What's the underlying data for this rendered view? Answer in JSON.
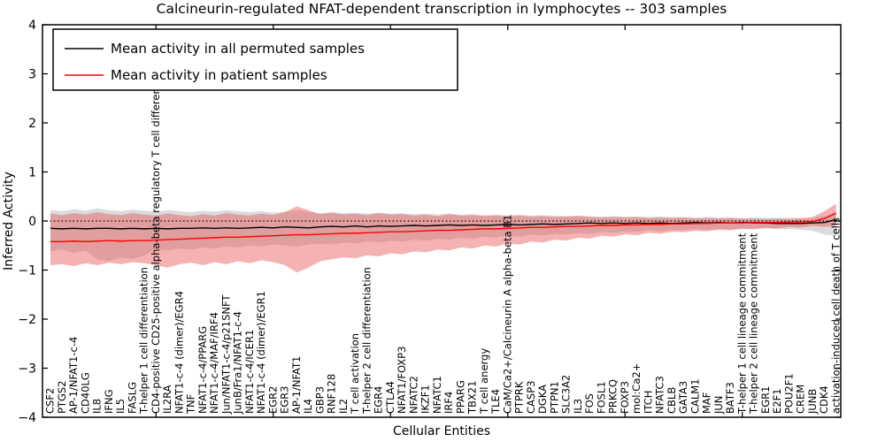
{
  "chart_data": {
    "type": "line",
    "title": "Calcineurin-regulated NFAT-dependent transcription in lymphocytes -- 303 samples",
    "xlabel": "Cellular Entities",
    "ylabel": "Inferred Activity",
    "ylim": [
      -4,
      4
    ],
    "yticks": [
      4,
      3,
      2,
      1,
      0,
      -1,
      -2,
      -3,
      -4
    ],
    "grid": false,
    "legend_position": "upper left",
    "reference_line": {
      "y": 0,
      "style": "dotted",
      "color": "#000000"
    },
    "axis_color": "#000000",
    "top_tick_indices": [
      9,
      19,
      29,
      39,
      49,
      59
    ],
    "categories": [
      "CSF2",
      "PTGS2",
      "AP-1/NFAT1-c-4",
      "CD40LG",
      "IL8",
      "IFNG",
      "IL5",
      "FASLG",
      "T-helper 1 cell differentiation",
      "CD4-positive CD25-positive alpha-beta regulatory T cell differentiation",
      "IL2RA",
      "NFAT1-c-4 (dimer)/EGR4",
      "TNF",
      "NFAT1-c-4/PPARG",
      "NFAT1-c-4/MAF/IRF4",
      "Jun/NFAT1-c-4/p21SNFT",
      "JunB/Fra1/NFAT1-c-4",
      "NFAT1-c-4/ICER1",
      "NFAT1-c-4 (dimer)/EGR1",
      "EGR2",
      "EGR3",
      "AP-1/NFAT1",
      "IL4",
      "GBP3",
      "RNF128",
      "IL2",
      "T cell activation",
      "T-helper 2 cell differentiation",
      "EGR4",
      "CTLA4",
      "NFAT1/FOXP3",
      "NFATC2",
      "IKZF1",
      "NFATC1",
      "IRF4",
      "PPARG",
      "TBX21",
      "T cell anergy",
      "TLE4",
      "CaM/Ca2+/Calcineurin A alpha-beta B1",
      "PTPRK",
      "CASP3",
      "DGKA",
      "PTPN1",
      "SLC3A2",
      "IL3",
      "FOS",
      "FOSL1",
      "PRKCQ",
      "FOXP3",
      "mol:Ca2+",
      "ITCH",
      "NFATC3",
      "CBLB",
      "GATA3",
      "CALM1",
      "MAF",
      "JUN",
      "BATF3",
      "T-helper 1 cell lineage commitment",
      "T-helper 2 cell lineage commitment",
      "EGR1",
      "E2F1",
      "POU2F1",
      "CREM",
      "JUNB",
      "CDK4",
      "activation-induced cell death of T cells"
    ],
    "series": [
      {
        "name": "Mean activity in all permuted samples",
        "kind": "line",
        "color": "#000000",
        "values": [
          -0.15,
          -0.16,
          -0.15,
          -0.16,
          -0.15,
          -0.15,
          -0.16,
          -0.15,
          -0.16,
          -0.15,
          -0.16,
          -0.15,
          -0.15,
          -0.14,
          -0.15,
          -0.14,
          -0.15,
          -0.14,
          -0.13,
          -0.14,
          -0.12,
          -0.13,
          -0.14,
          -0.12,
          -0.11,
          -0.12,
          -0.1,
          -0.12,
          -0.1,
          -0.11,
          -0.1,
          -0.09,
          -0.1,
          -0.09,
          -0.08,
          -0.09,
          -0.08,
          -0.09,
          -0.08,
          -0.07,
          -0.08,
          -0.07,
          -0.06,
          -0.07,
          -0.06,
          -0.05,
          -0.04,
          -0.05,
          -0.04,
          -0.05,
          -0.04,
          -0.05,
          -0.04,
          -0.05,
          -0.04,
          -0.03,
          -0.04,
          -0.03,
          -0.04,
          -0.03,
          -0.04,
          -0.04,
          -0.05,
          -0.05,
          -0.05,
          -0.04,
          -0.03,
          0.03
        ]
      },
      {
        "name": "Mean activity in patient samples",
        "kind": "line",
        "color": "#ff0000",
        "values": [
          -0.42,
          -0.42,
          -0.41,
          -0.42,
          -0.41,
          -0.4,
          -0.41,
          -0.4,
          -0.4,
          -0.39,
          -0.38,
          -0.37,
          -0.36,
          -0.35,
          -0.34,
          -0.33,
          -0.33,
          -0.32,
          -0.31,
          -0.3,
          -0.29,
          -0.28,
          -0.28,
          -0.27,
          -0.26,
          -0.25,
          -0.25,
          -0.24,
          -0.23,
          -0.22,
          -0.22,
          -0.21,
          -0.2,
          -0.19,
          -0.19,
          -0.18,
          -0.17,
          -0.16,
          -0.16,
          -0.15,
          -0.14,
          -0.13,
          -0.13,
          -0.12,
          -0.11,
          -0.11,
          -0.1,
          -0.09,
          -0.09,
          -0.08,
          -0.08,
          -0.07,
          -0.07,
          -0.06,
          -0.06,
          -0.05,
          -0.05,
          -0.04,
          -0.04,
          -0.04,
          -0.03,
          -0.03,
          -0.03,
          -0.02,
          -0.02,
          -0.01,
          0.05,
          0.16
        ]
      },
      {
        "name": "Permuted samples range",
        "kind": "band",
        "color": "#999999",
        "opacity": 0.35,
        "upper": [
          0.22,
          0.2,
          0.24,
          0.21,
          0.26,
          0.22,
          0.2,
          0.23,
          0.21,
          0.19,
          0.22,
          0.2,
          0.18,
          0.21,
          0.19,
          0.22,
          0.2,
          0.18,
          0.2,
          0.17,
          0.19,
          0.22,
          0.18,
          0.16,
          0.18,
          0.16,
          0.17,
          0.15,
          0.17,
          0.15,
          0.16,
          0.14,
          0.15,
          0.13,
          0.15,
          0.13,
          0.14,
          0.12,
          0.13,
          0.12,
          0.13,
          0.11,
          0.12,
          0.11,
          0.1,
          0.11,
          0.1,
          0.09,
          0.1,
          0.09,
          0.09,
          0.08,
          0.09,
          0.08,
          0.08,
          0.07,
          0.08,
          0.07,
          0.07,
          0.06,
          0.07,
          0.06,
          0.06,
          0.07,
          0.06,
          0.06,
          0.1,
          0.18
        ],
        "lower": [
          -0.62,
          -0.58,
          -0.65,
          -0.6,
          -0.78,
          -0.82,
          -0.74,
          -0.78,
          -0.7,
          -0.58,
          -0.6,
          -0.56,
          -0.58,
          -0.54,
          -0.56,
          -0.52,
          -0.54,
          -0.5,
          -0.52,
          -0.48,
          -0.5,
          -0.52,
          -0.48,
          -0.46,
          -0.48,
          -0.44,
          -0.46,
          -0.42,
          -0.44,
          -0.4,
          -0.42,
          -0.38,
          -0.4,
          -0.36,
          -0.38,
          -0.34,
          -0.36,
          -0.32,
          -0.34,
          -0.3,
          -0.32,
          -0.28,
          -0.3,
          -0.26,
          -0.28,
          -0.24,
          -0.26,
          -0.22,
          -0.24,
          -0.21,
          -0.22,
          -0.19,
          -0.21,
          -0.18,
          -0.19,
          -0.17,
          -0.18,
          -0.16,
          -0.17,
          -0.15,
          -0.16,
          -0.15,
          -0.17,
          -0.16,
          -0.18,
          -0.2,
          -0.28,
          -0.3
        ]
      },
      {
        "name": "Patient samples range",
        "kind": "band",
        "color": "#e85555",
        "opacity": 0.45,
        "upper": [
          0.15,
          0.12,
          0.16,
          0.13,
          0.18,
          0.14,
          0.12,
          0.16,
          0.13,
          0.11,
          0.15,
          0.12,
          0.1,
          0.14,
          0.11,
          0.16,
          0.13,
          0.11,
          0.15,
          0.12,
          0.18,
          0.3,
          0.22,
          0.14,
          0.17,
          0.13,
          0.15,
          0.12,
          0.16,
          0.13,
          0.14,
          0.11,
          0.13,
          0.1,
          0.14,
          0.11,
          0.12,
          0.1,
          0.11,
          0.09,
          0.11,
          0.09,
          0.1,
          0.08,
          0.09,
          0.1,
          0.08,
          0.07,
          0.08,
          0.07,
          0.08,
          0.06,
          0.07,
          0.06,
          0.07,
          0.05,
          0.06,
          0.05,
          0.06,
          0.05,
          0.05,
          0.04,
          0.05,
          0.04,
          0.05,
          0.08,
          0.2,
          0.35
        ],
        "lower": [
          -0.9,
          -0.88,
          -0.92,
          -0.86,
          -0.9,
          -0.85,
          -0.88,
          -0.84,
          -0.86,
          -0.9,
          -0.95,
          -0.88,
          -0.85,
          -0.9,
          -0.84,
          -0.88,
          -0.82,
          -0.86,
          -0.8,
          -0.84,
          -0.9,
          -1.05,
          -0.95,
          -0.82,
          -0.78,
          -0.74,
          -0.76,
          -0.7,
          -0.72,
          -0.66,
          -0.68,
          -0.62,
          -0.64,
          -0.58,
          -0.6,
          -0.54,
          -0.56,
          -0.5,
          -0.52,
          -0.46,
          -0.48,
          -0.42,
          -0.44,
          -0.38,
          -0.4,
          -0.34,
          -0.36,
          -0.3,
          -0.32,
          -0.27,
          -0.29,
          -0.24,
          -0.26,
          -0.22,
          -0.23,
          -0.2,
          -0.21,
          -0.18,
          -0.19,
          -0.16,
          -0.17,
          -0.14,
          -0.15,
          -0.12,
          -0.13,
          -0.1,
          -0.12,
          -0.1
        ]
      }
    ]
  }
}
